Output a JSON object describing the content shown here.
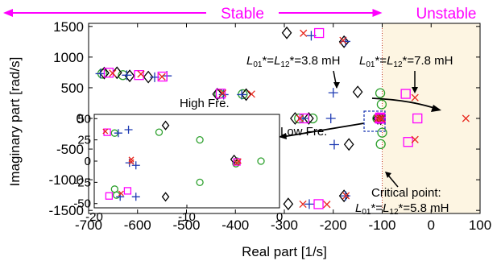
{
  "chart_data": {
    "type": "scatter",
    "xlabel": "Real part [1/s]",
    "ylabel": "Imaginary part [rad/s]",
    "xlim": [
      -700,
      100
    ],
    "ylim": [
      -1550,
      1550
    ],
    "xticks": [
      -700,
      -600,
      -500,
      -400,
      -300,
      -200,
      -100,
      0,
      100
    ],
    "yticks": [
      1500,
      1000,
      500,
      0,
      -500,
      -1000,
      -1500
    ],
    "xtick_labels": [
      "-700",
      "-600",
      "-500",
      "-400",
      "-300",
      "-200",
      "-100",
      "0",
      "100"
    ],
    "ytick_labels": [
      "1500",
      "1000",
      "500",
      "0",
      "-500",
      "-1000",
      "-1500"
    ],
    "regions": {
      "stable_label": "Stable",
      "unstable_label": "Unstable",
      "boundary_x": -100,
      "arrow_color": "#ff00ff",
      "unstable_fill": "#fdf5e2"
    },
    "series": [
      {
        "marker": "circle",
        "color": "#2ca02c",
        "points": [
          [
            -672,
            730
          ],
          [
            -668,
            -722
          ],
          [
            -630,
            706
          ],
          [
            -628,
            -696
          ],
          [
            -590,
            -703
          ],
          [
            -433,
            400
          ],
          [
            -432,
            -402
          ],
          [
            -385,
            395
          ],
          [
            -380,
            -404
          ],
          [
            -270,
            0
          ],
          [
            -242,
            0
          ],
          [
            -110,
            0
          ],
          [
            -106,
            0
          ],
          [
            -104,
            0
          ],
          [
            -100,
            -232
          ],
          [
            -101,
            229
          ],
          [
            -103,
            -419
          ],
          [
            -104,
            412
          ]
        ]
      },
      {
        "marker": "diamond",
        "color": "#000000",
        "points": [
          [
            -668,
            740
          ],
          [
            -642,
            745
          ],
          [
            -616,
            694
          ],
          [
            -578,
            675
          ],
          [
            -553,
            -706
          ],
          [
            -437,
            396
          ],
          [
            -378,
            388
          ],
          [
            -295,
            1395
          ],
          [
            -292,
            -1395
          ],
          [
            -278,
            0
          ],
          [
            -250,
            0
          ],
          [
            -178,
            1250
          ],
          [
            -178,
            -1263
          ],
          [
            -168,
            -424
          ],
          [
            -150,
            432
          ],
          [
            -109,
            0
          ],
          [
            -103,
            -6
          ]
        ]
      },
      {
        "marker": "plus",
        "color": "#1f3bb3",
        "points": [
          [
            -676,
            730
          ],
          [
            -632,
            -729
          ],
          [
            -622,
            705
          ],
          [
            -572,
            -701
          ],
          [
            -565,
            672
          ],
          [
            -540,
            694
          ],
          [
            -424,
            388
          ],
          [
            -388,
            -388
          ],
          [
            -387,
            388
          ],
          [
            -262,
            0
          ],
          [
            -249,
            -1397
          ],
          [
            -245,
            1348
          ],
          [
            -205,
            0
          ],
          [
            -200,
            419
          ],
          [
            -198,
            -427
          ],
          [
            -175,
            1255
          ],
          [
            -175,
            -1263
          ],
          [
            -104,
            0
          ]
        ]
      },
      {
        "marker": "square",
        "color": "#ff00ff",
        "points": [
          [
            -659,
            745
          ],
          [
            -653,
            -727
          ],
          [
            -600,
            -710
          ],
          [
            -597,
            707
          ],
          [
            -549,
            682
          ],
          [
            -549,
            -698
          ],
          [
            -430,
            405
          ],
          [
            -429,
            -404
          ],
          [
            -390,
            -404
          ],
          [
            -259,
            0
          ],
          [
            -230,
            -1398
          ],
          [
            -229,
            1392
          ],
          [
            -105,
            0
          ],
          [
            -104,
            15
          ],
          [
            -103,
            -5
          ],
          [
            -52,
            400
          ],
          [
            -47,
            -384
          ],
          [
            -28,
            0
          ]
        ]
      },
      {
        "marker": "cross",
        "color": "#e8281e",
        "points": [
          [
            -651,
            737
          ],
          [
            -645,
            -730
          ],
          [
            -593,
            724
          ],
          [
            -587,
            -711
          ],
          [
            -550,
            680
          ],
          [
            -542,
            -693
          ],
          [
            -426,
            412
          ],
          [
            -424,
            -412
          ],
          [
            -367,
            397
          ],
          [
            -365,
            -394
          ],
          [
            -268,
            0
          ],
          [
            -262,
            -1398
          ],
          [
            -261,
            1389
          ],
          [
            -213,
            -1402
          ],
          [
            -180,
            1272
          ],
          [
            -174,
            -1260
          ],
          [
            -109,
            0
          ],
          [
            -104,
            5
          ],
          [
            -101,
            -3
          ],
          [
            -33,
            339
          ],
          [
            -33,
            -345
          ],
          [
            71,
            0
          ]
        ]
      }
    ],
    "annotations": {
      "high_fre": "High Fre.",
      "low_fre": "Low Fre.",
      "l38": "*=",
      "l38_tail": "*=3.8 mH",
      "l78": "*=",
      "l78_tail": "*=7.8 mH",
      "critical_line1": "Critical point:",
      "critical_tail": "*=5.8 mH",
      "crit_eq": "*=",
      "sym_L": "L",
      "sub01": "01",
      "sub12": "12"
    },
    "inset": {
      "xlim": [
        -20,
        0
      ],
      "ylim": [
        -55,
        55
      ],
      "xticks": [
        -20,
        -10,
        0
      ],
      "yticks": [
        50,
        25,
        0,
        -25,
        -50
      ],
      "xtick_labels": [
        "-20",
        "-10",
        "0"
      ],
      "ytick_labels": [
        "50",
        "25",
        "0",
        "-25",
        "-50"
      ],
      "series": [
        {
          "marker": "circle",
          "color": "#2ca02c",
          "points": [
            [
              -17.8,
              -33
            ],
            [
              -17.8,
              33
            ],
            [
              -17.6,
              -40
            ],
            [
              -13,
              34
            ],
            [
              -8.6,
              -25
            ],
            [
              -8.6,
              25
            ],
            [
              -4.7,
              -3
            ],
            [
              -4.6,
              0
            ],
            [
              -2,
              0
            ]
          ]
        },
        {
          "marker": "diamond",
          "color": "#000000",
          "points": [
            [
              -12.3,
              -42
            ],
            [
              -12.3,
              42
            ],
            [
              -4.9,
              2
            ]
          ]
        },
        {
          "marker": "plus",
          "color": "#1f3bb3",
          "points": [
            [
              -17.2,
              -42
            ],
            [
              -17.4,
              33
            ],
            [
              -16.3,
              37
            ],
            [
              -15.5,
              -42
            ],
            [
              -15.5,
              -5
            ],
            [
              -16.2,
              -2
            ]
          ]
        },
        {
          "marker": "square",
          "color": "#ff00ff",
          "points": [
            [
              -18.6,
              34
            ],
            [
              -18.4,
              -41
            ],
            [
              -16.4,
              -35
            ],
            [
              -4.6,
              -1
            ]
          ]
        },
        {
          "marker": "cross",
          "color": "#e8281e",
          "points": [
            [
              -17.1,
              -38
            ],
            [
              -18.8,
              35
            ],
            [
              -16.0,
              -1
            ],
            [
              -16.0,
              2
            ],
            [
              -4.4,
              0
            ],
            [
              -4.6,
              -2
            ]
          ]
        }
      ]
    }
  }
}
